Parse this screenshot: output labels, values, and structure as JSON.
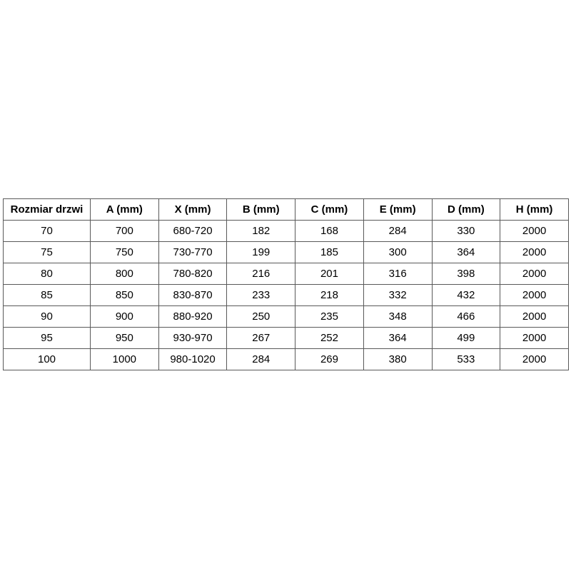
{
  "page": {
    "background_color": "#ffffff",
    "text_color": "#000000",
    "border_color": "#595959"
  },
  "table": {
    "name": "door-dimensions-table",
    "headers": [
      "Rozmiar drzwi",
      "A (mm)",
      "X (mm)",
      "B (mm)",
      "C (mm)",
      "E (mm)",
      "D (mm)",
      "H (mm)"
    ],
    "rows": [
      [
        "70",
        "700",
        "680-720",
        "182",
        "168",
        "284",
        "330",
        "2000"
      ],
      [
        "75",
        "750",
        "730-770",
        "199",
        "185",
        "300",
        "364",
        "2000"
      ],
      [
        "80",
        "800",
        "780-820",
        "216",
        "201",
        "316",
        "398",
        "2000"
      ],
      [
        "85",
        "850",
        "830-870",
        "233",
        "218",
        "332",
        "432",
        "2000"
      ],
      [
        "90",
        "900",
        "880-920",
        "250",
        "235",
        "348",
        "466",
        "2000"
      ],
      [
        "95",
        "950",
        "930-970",
        "267",
        "252",
        "364",
        "499",
        "2000"
      ],
      [
        "100",
        "1000",
        "980-1020",
        "284",
        "269",
        "380",
        "533",
        "2000"
      ]
    ]
  }
}
